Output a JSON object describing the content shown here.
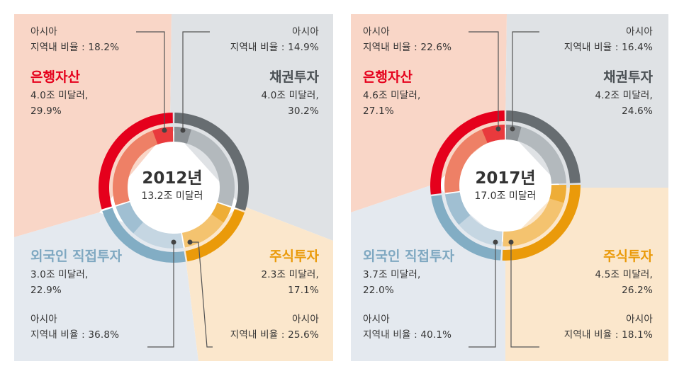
{
  "colors": {
    "bank_bg": "#f9d6c7",
    "bond_bg": "#dfe2e5",
    "equity_bg": "#fbe7cc",
    "fdi_bg": "#e4e9ef",
    "bank_outer": "#e5001c",
    "bank_inner": "#ee8066",
    "bond_outer": "#676d71",
    "bond_inner": "#b3b9bd",
    "equity_outer": "#ea9a0a",
    "equity_inner": "#f4c36f",
    "fdi_outer": "#82adc4",
    "fdi_inner": "#c5d6e2",
    "bank_title": "#e5001c",
    "bond_title": "#4b5155",
    "equity_title": "#ea9a0a",
    "fdi_title": "#7fa8c1"
  },
  "chart_data": [
    {
      "type": "donut",
      "center_year": "2012년",
      "center_total": "13.2조 미달러",
      "segments": [
        {
          "key": "bond",
          "title": "채권투자",
          "amount": "4.0조 미달러,",
          "pct_label": "30.2%",
          "share": 30.2,
          "region_label": "아시아",
          "region_text": "지역내 비율 : 14.9%",
          "region_share": 14.9
        },
        {
          "key": "equity",
          "title": "주식투자",
          "amount": "2.3조 미달러,",
          "pct_label": "17.1%",
          "share": 17.1,
          "region_label": "아시아",
          "region_text": "지역내 비율 : 25.6%",
          "region_share": 25.6
        },
        {
          "key": "fdi",
          "title": "외국인 직접투자",
          "amount": "3.0조 미달러,",
          "pct_label": "22.9%",
          "share": 22.9,
          "region_label": "아시아",
          "region_text": "지역내 비율 : 36.8%",
          "region_share": 36.8
        },
        {
          "key": "bank",
          "title": "은행자산",
          "amount": "4.0조 미달러,",
          "pct_label": "29.9%",
          "share": 29.9,
          "region_label": "아시아",
          "region_text": "지역내 비율 : 18.2%",
          "region_share": 18.2
        }
      ]
    },
    {
      "type": "donut",
      "center_year": "2017년",
      "center_total": "17.0조 미달러",
      "segments": [
        {
          "key": "bond",
          "title": "채권투자",
          "amount": "4.2조 미달러,",
          "pct_label": "24.6%",
          "share": 24.6,
          "region_label": "아시아",
          "region_text": "지역내 비율 : 16.4%",
          "region_share": 16.4
        },
        {
          "key": "equity",
          "title": "주식투자",
          "amount": "4.5조 미달러,",
          "pct_label": "26.2%",
          "share": 26.2,
          "region_label": "아시아",
          "region_text": "지역내 비율 : 18.1%",
          "region_share": 18.1
        },
        {
          "key": "fdi",
          "title": "외국인 직접투자",
          "amount": "3.7조 미달러,",
          "pct_label": "22.0%",
          "share": 22.0,
          "region_label": "아시아",
          "region_text": "지역내 비율 : 40.1%",
          "region_share": 40.1
        },
        {
          "key": "bank",
          "title": "은행자산",
          "amount": "4.6조 미달러,",
          "pct_label": "27.1%",
          "share": 27.1,
          "region_label": "아시아",
          "region_text": "지역내 비율 : 22.6%",
          "region_share": 22.6
        }
      ]
    }
  ]
}
